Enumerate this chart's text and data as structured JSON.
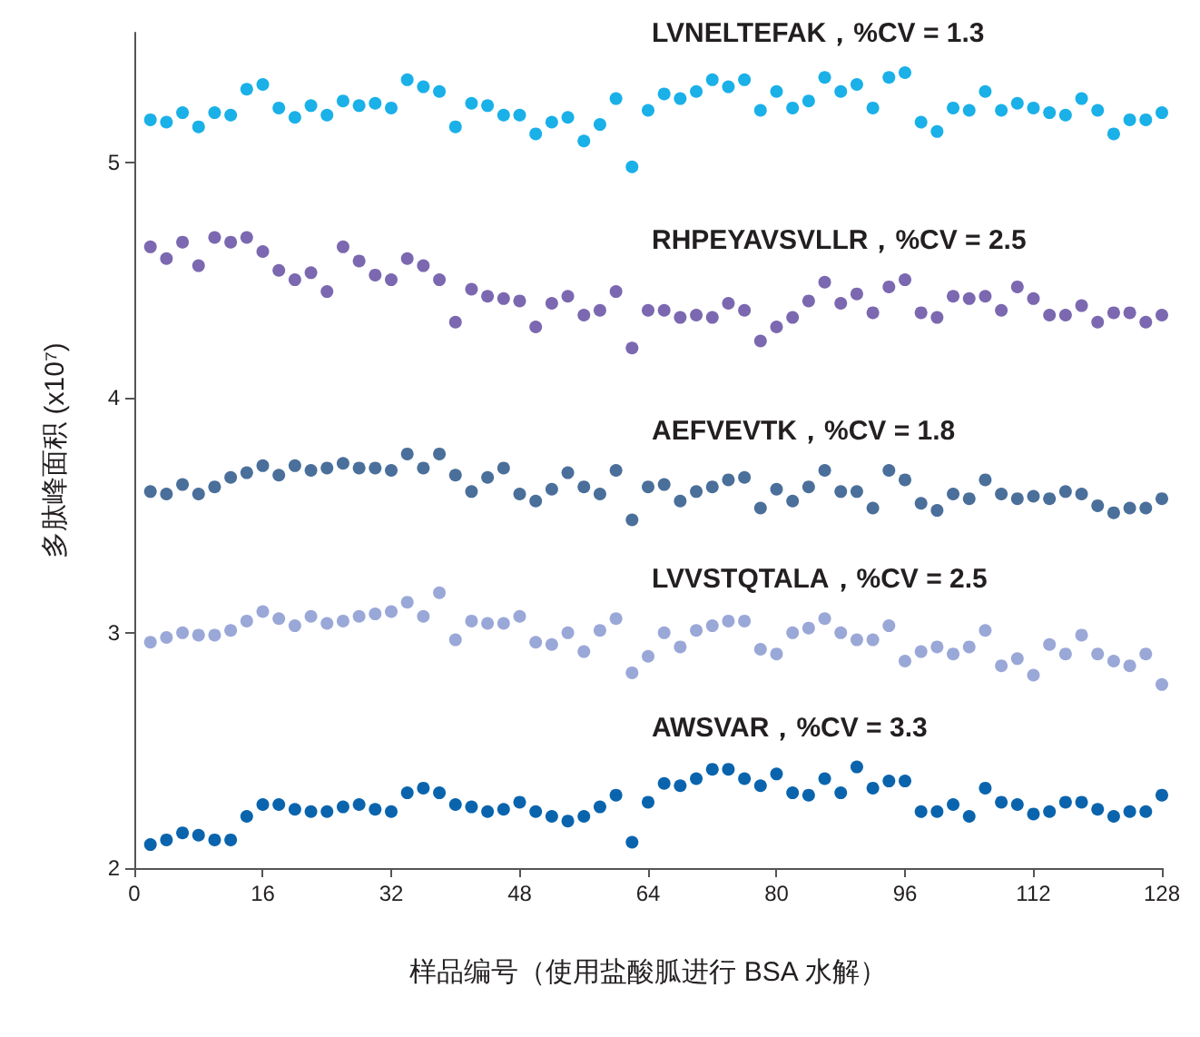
{
  "chart_data": {
    "type": "scatter",
    "xlabel": "样品编号（使用盐酸胍进行 BSA 水解）",
    "ylabel": "多肽峰面积 (x10⁷)",
    "x": [
      2,
      4,
      6,
      8,
      10,
      12,
      14,
      16,
      18,
      20,
      22,
      24,
      26,
      28,
      30,
      32,
      34,
      36,
      38,
      40,
      42,
      44,
      46,
      48,
      50,
      52,
      54,
      56,
      58,
      60,
      62,
      64,
      66,
      68,
      70,
      72,
      74,
      76,
      78,
      80,
      82,
      84,
      86,
      88,
      90,
      92,
      94,
      96,
      98,
      100,
      102,
      104,
      106,
      108,
      110,
      112,
      114,
      116,
      118,
      120,
      122,
      124,
      126,
      128
    ],
    "xlim": [
      0,
      128
    ],
    "xticks": [
      0,
      16,
      32,
      48,
      64,
      80,
      96,
      112,
      128
    ],
    "ylim": [
      2,
      5.55
    ],
    "yticks": [
      2,
      3,
      4,
      5
    ],
    "grid": false,
    "legend": false,
    "marker": "circle",
    "series": [
      {
        "name": "LVNELTEFAK，%CV = 1.3",
        "color": "#1ab0e8",
        "values": [
          5.18,
          5.17,
          5.21,
          5.15,
          5.21,
          5.2,
          5.31,
          5.33,
          5.23,
          5.19,
          5.24,
          5.2,
          5.26,
          5.24,
          5.25,
          5.23,
          5.35,
          5.32,
          5.3,
          5.15,
          5.25,
          5.24,
          5.2,
          5.2,
          5.12,
          5.17,
          5.19,
          5.09,
          5.16,
          5.27,
          4.98,
          5.22,
          5.29,
          5.27,
          5.3,
          5.35,
          5.32,
          5.35,
          5.22,
          5.3,
          5.23,
          5.26,
          5.36,
          5.3,
          5.33,
          5.23,
          5.36,
          5.38,
          5.17,
          5.13,
          5.23,
          5.22,
          5.3,
          5.22,
          5.25,
          5.23,
          5.21,
          5.2,
          5.27,
          5.22,
          5.12,
          5.18,
          5.18,
          5.21
        ]
      },
      {
        "name": "RHPEYAVSVLLR，%CV = 2.5",
        "color": "#7b68b0",
        "values": [
          4.64,
          4.59,
          4.66,
          4.56,
          4.68,
          4.66,
          4.68,
          4.62,
          4.54,
          4.5,
          4.53,
          4.45,
          4.64,
          4.58,
          4.52,
          4.5,
          4.59,
          4.56,
          4.5,
          4.32,
          4.46,
          4.43,
          4.42,
          4.41,
          4.3,
          4.4,
          4.43,
          4.35,
          4.37,
          4.45,
          4.21,
          4.37,
          4.37,
          4.34,
          4.35,
          4.34,
          4.4,
          4.37,
          4.24,
          4.3,
          4.34,
          4.41,
          4.49,
          4.4,
          4.44,
          4.36,
          4.47,
          4.5,
          4.36,
          4.34,
          4.43,
          4.42,
          4.43,
          4.37,
          4.47,
          4.42,
          4.35,
          4.35,
          4.39,
          4.32,
          4.36,
          4.36,
          4.32,
          4.35
        ]
      },
      {
        "name": "AEFVEVTK，%CV = 1.8",
        "color": "#4a6f9a",
        "values": [
          3.6,
          3.59,
          3.63,
          3.59,
          3.62,
          3.66,
          3.68,
          3.71,
          3.67,
          3.71,
          3.69,
          3.7,
          3.72,
          3.7,
          3.7,
          3.69,
          3.76,
          3.7,
          3.76,
          3.67,
          3.6,
          3.66,
          3.7,
          3.59,
          3.56,
          3.61,
          3.68,
          3.62,
          3.59,
          3.69,
          3.48,
          3.62,
          3.63,
          3.56,
          3.6,
          3.62,
          3.65,
          3.66,
          3.53,
          3.61,
          3.56,
          3.62,
          3.69,
          3.6,
          3.6,
          3.53,
          3.69,
          3.65,
          3.55,
          3.52,
          3.59,
          3.57,
          3.65,
          3.59,
          3.57,
          3.58,
          3.57,
          3.6,
          3.59,
          3.54,
          3.51,
          3.53,
          3.53,
          3.57
        ]
      },
      {
        "name": "LVVSTQTALA，%CV = 2.5",
        "color": "#9aa8d8",
        "values": [
          2.96,
          2.98,
          3.0,
          2.99,
          2.99,
          3.01,
          3.05,
          3.09,
          3.06,
          3.03,
          3.07,
          3.04,
          3.05,
          3.07,
          3.08,
          3.09,
          3.13,
          3.07,
          3.17,
          2.97,
          3.05,
          3.04,
          3.04,
          3.07,
          2.96,
          2.95,
          3.0,
          2.92,
          3.01,
          3.06,
          2.83,
          2.9,
          3.0,
          2.94,
          3.01,
          3.03,
          3.05,
          3.05,
          2.93,
          2.91,
          3.0,
          3.02,
          3.06,
          3.0,
          2.97,
          2.97,
          3.03,
          2.88,
          2.92,
          2.94,
          2.91,
          2.94,
          3.01,
          2.86,
          2.89,
          2.82,
          2.95,
          2.91,
          2.99,
          2.91,
          2.88,
          2.86,
          2.91,
          2.78
        ]
      },
      {
        "name": "AWSVAR，%CV = 3.3",
        "color": "#0a64ad",
        "values": [
          2.1,
          2.12,
          2.15,
          2.14,
          2.12,
          2.12,
          2.22,
          2.27,
          2.27,
          2.25,
          2.24,
          2.24,
          2.26,
          2.27,
          2.25,
          2.24,
          2.32,
          2.34,
          2.32,
          2.27,
          2.26,
          2.24,
          2.25,
          2.28,
          2.24,
          2.22,
          2.2,
          2.22,
          2.26,
          2.31,
          2.11,
          2.28,
          2.36,
          2.35,
          2.38,
          2.42,
          2.42,
          2.38,
          2.35,
          2.4,
          2.32,
          2.31,
          2.38,
          2.32,
          2.43,
          2.34,
          2.37,
          2.37,
          2.24,
          2.24,
          2.27,
          2.22,
          2.34,
          2.28,
          2.27,
          2.23,
          2.24,
          2.28,
          2.28,
          2.25,
          2.22,
          2.24,
          2.24,
          2.31
        ]
      }
    ]
  }
}
